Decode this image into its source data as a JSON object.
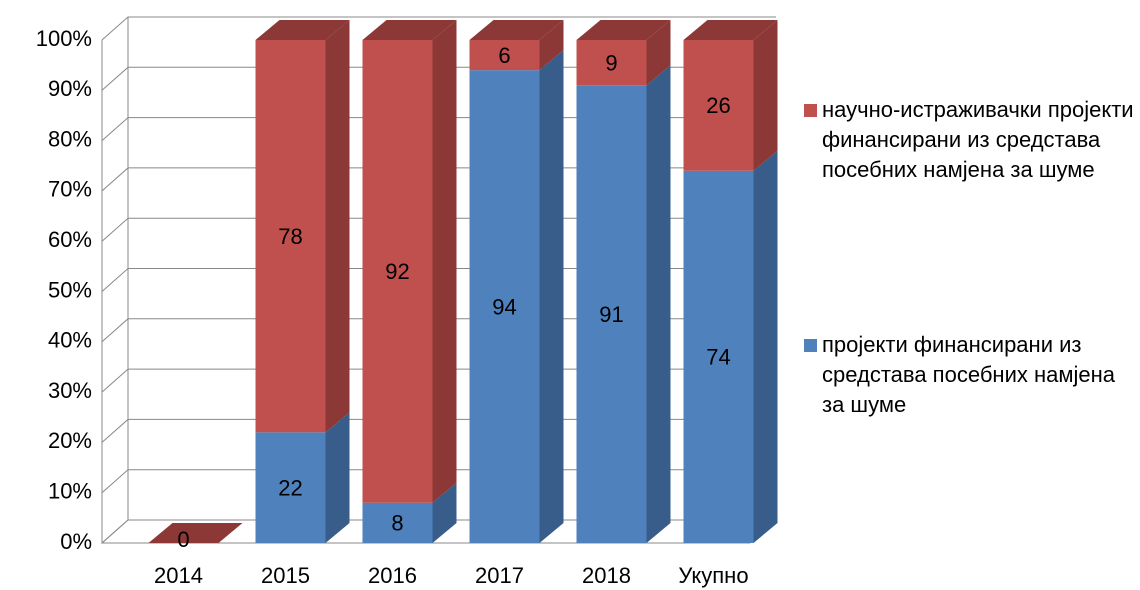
{
  "chart_data": {
    "type": "bar3d_stacked",
    "categories": [
      "2014",
      "2015",
      "2016",
      "2017",
      "2018",
      "Укупно"
    ],
    "series": [
      {
        "name": "пројекти финансирани из средстава посебних намјена за шуме",
        "color": "#4f81bd",
        "side_color": "#385d8a",
        "values": [
          0,
          22,
          8,
          94,
          91,
          74
        ],
        "value_labels": [
          null,
          "22",
          "8",
          "94",
          "91",
          "74"
        ]
      },
      {
        "name": "научно-истраживачки пројекти финансирани из средстава посебних намјена за шуме",
        "color": "#c0504d",
        "side_color": "#8c3836",
        "values": [
          0,
          78,
          92,
          6,
          9,
          26
        ],
        "value_labels": [
          "0",
          "78",
          "92",
          "6",
          "9",
          "26"
        ]
      }
    ],
    "ylim": [
      0,
      100
    ],
    "yticks": [
      {
        "value": 0,
        "label": "0%"
      },
      {
        "value": 10,
        "label": "10%"
      },
      {
        "value": 20,
        "label": "20%"
      },
      {
        "value": 30,
        "label": "30%"
      },
      {
        "value": 40,
        "label": "40%"
      },
      {
        "value": 50,
        "label": "50%"
      },
      {
        "value": 60,
        "label": "60%"
      },
      {
        "value": 70,
        "label": "70%"
      },
      {
        "value": 80,
        "label": "80%"
      },
      {
        "value": 90,
        "label": "90%"
      },
      {
        "value": 100,
        "label": "100%"
      }
    ],
    "grid": true,
    "legend": "right"
  }
}
